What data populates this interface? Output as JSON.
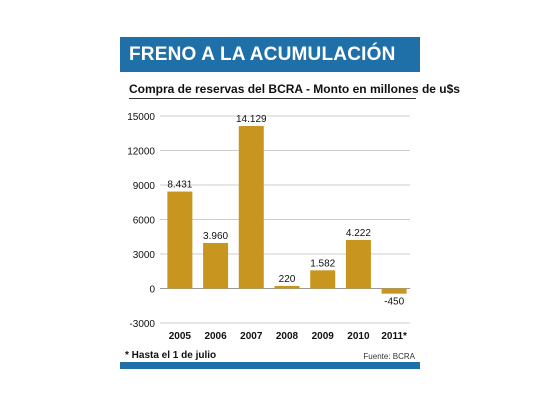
{
  "header": {
    "title": "FRENO A LA ACUMULACIÓN"
  },
  "chart_data": {
    "type": "bar",
    "title": "Compra de reservas del BCRA - Monto en millones de u$s",
    "categories": [
      "2005",
      "2006",
      "2007",
      "2008",
      "2009",
      "2010",
      "2011*"
    ],
    "values": [
      8431,
      3960,
      14129,
      220,
      1582,
      4222,
      -450
    ],
    "data_labels": [
      "8.431",
      "3.960",
      "14.129",
      "220",
      "1.582",
      "4.222",
      "-450"
    ],
    "yticks": [
      15000,
      12000,
      9000,
      6000,
      3000,
      0,
      -3000
    ],
    "ylim": [
      -3000,
      15000
    ],
    "grid": true,
    "bar_color": "#c8961e",
    "xlabel": "",
    "ylabel": ""
  },
  "footer": {
    "note": "* Hasta el 1 de julio",
    "source": "Fuente: BCRA"
  },
  "colors": {
    "header_bg": "#1f6fa8",
    "bar": "#c8961e",
    "grid": "#999999"
  }
}
